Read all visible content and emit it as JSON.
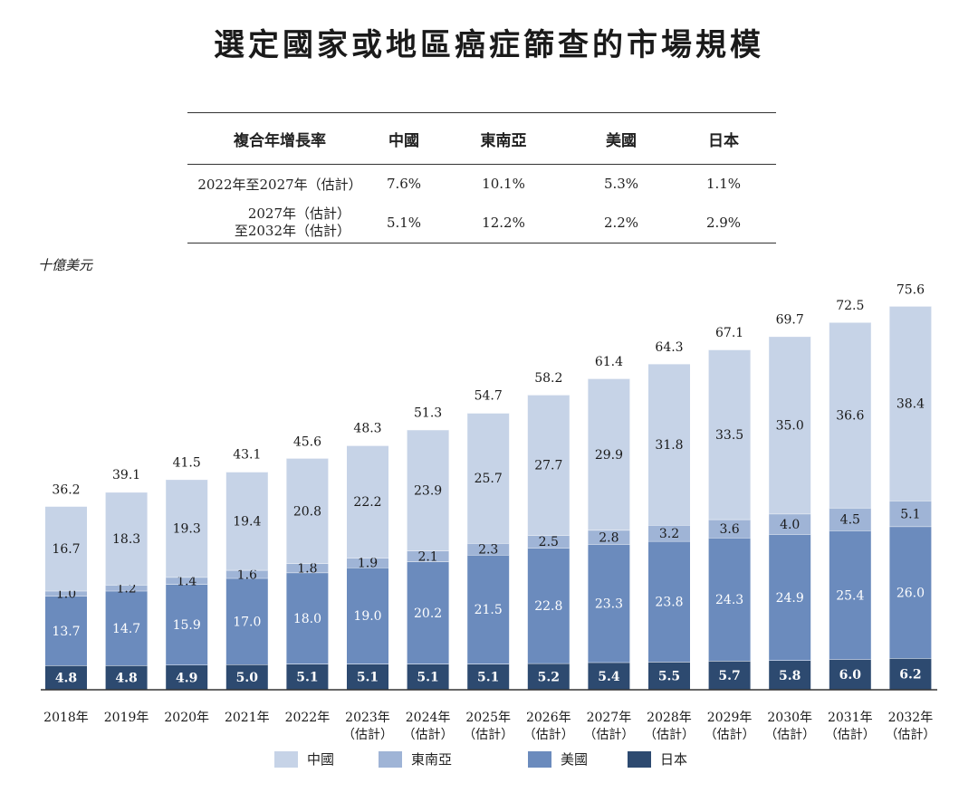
{
  "title": "選定國家或地區癌症篩查的市場規模",
  "cagr_table": {
    "headers": [
      "複合年增長率",
      "中國",
      "東南亞",
      "美國",
      "日本"
    ],
    "rows": [
      {
        "period": [
          "2022年至2027年（估計）"
        ],
        "values": [
          "7.6%",
          "10.1%",
          "5.3%",
          "1.1%"
        ]
      },
      {
        "period": [
          "2027年（估計）",
          "至2032年（估計）"
        ],
        "values": [
          "5.1%",
          "12.2%",
          "2.2%",
          "2.9%"
        ]
      }
    ]
  },
  "unit": "十億美元",
  "chart_data": {
    "type": "bar",
    "stacked": true,
    "categories": [
      [
        "2018年"
      ],
      [
        "2019年"
      ],
      [
        "2020年"
      ],
      [
        "2021年"
      ],
      [
        "2022年"
      ],
      [
        "2023年",
        "（估計）"
      ],
      [
        "2024年",
        "（估計）"
      ],
      [
        "2025年",
        "（估計）"
      ],
      [
        "2026年",
        "（估計）"
      ],
      [
        "2027年",
        "（估計）"
      ],
      [
        "2028年",
        "（估計）"
      ],
      [
        "2029年",
        "（估計）"
      ],
      [
        "2030年",
        "（估計）"
      ],
      [
        "2031年",
        "（估計）"
      ],
      [
        "2032年",
        "（估計）"
      ]
    ],
    "series": [
      {
        "name": "日本",
        "color": "#2d4a70",
        "values": [
          4.8,
          4.8,
          4.9,
          5.0,
          5.1,
          5.1,
          5.1,
          5.1,
          5.2,
          5.4,
          5.5,
          5.7,
          5.8,
          6.0,
          6.2
        ]
      },
      {
        "name": "美國",
        "color": "#6b8bbd",
        "values": [
          13.7,
          14.7,
          15.9,
          17.0,
          18.0,
          19.0,
          20.2,
          21.5,
          22.8,
          23.3,
          23.8,
          24.3,
          24.9,
          25.4,
          26.0
        ]
      },
      {
        "name": "東南亞",
        "color": "#9fb4d6",
        "values": [
          1.0,
          1.2,
          1.4,
          1.6,
          1.8,
          1.9,
          2.1,
          2.3,
          2.5,
          2.8,
          3.2,
          3.6,
          4.0,
          4.5,
          5.1
        ]
      },
      {
        "name": "中國",
        "color": "#c6d3e7",
        "values": [
          16.7,
          18.3,
          19.3,
          19.4,
          20.8,
          22.2,
          23.9,
          25.7,
          27.7,
          29.9,
          31.8,
          33.5,
          35.0,
          36.6,
          38.4
        ]
      }
    ],
    "totals": [
      36.2,
      39.1,
      41.5,
      43.1,
      45.6,
      48.3,
      51.3,
      54.7,
      58.2,
      61.4,
      64.3,
      67.1,
      69.7,
      72.5,
      75.6
    ],
    "legend_order": [
      "中國",
      "東南亞",
      "美國",
      "日本"
    ],
    "legend_position": "bottom"
  }
}
